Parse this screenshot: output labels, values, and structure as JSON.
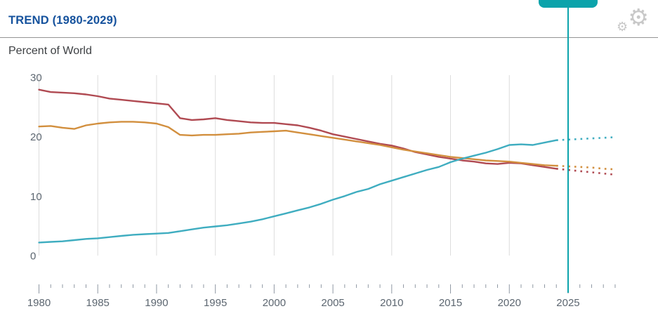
{
  "theme": {
    "title_blue": "#15529d",
    "subtitle_color": "#3c3f42",
    "divider_color": "#949494",
    "gear_gray": "#c8c8c8",
    "slider_handle_teal": "#0ba3ab"
  },
  "icons": {
    "settings_glyph": "⚙"
  },
  "chart_data": {
    "type": "line",
    "title": "TREND (1980-2029)",
    "ylabel": "Percent of World",
    "x_start": 1980,
    "x_end": 2029,
    "xticks": [
      1980,
      1985,
      1990,
      1995,
      2000,
      2005,
      2010,
      2015,
      2020,
      2025
    ],
    "yticks": [
      0,
      10,
      20,
      30
    ],
    "ylim": [
      0,
      30
    ],
    "grid": "vertical-gridlines-every-5-years",
    "legend": "none",
    "marker_year": 2025,
    "projection_start_year": 2024,
    "projection_style": "dotted",
    "colors": {
      "grid": "#dcdcdc",
      "tick": "#8f98a3",
      "axis_label": "#5c6670",
      "marker": "#0ba3ab"
    },
    "series": [
      {
        "id": "red",
        "color": "#b04a52",
        "values": [
          27.9,
          27.5,
          27.4,
          27.3,
          27.1,
          26.8,
          26.4,
          26.2,
          26.0,
          25.8,
          25.6,
          25.4,
          23.1,
          22.8,
          22.9,
          23.1,
          22.8,
          22.6,
          22.4,
          22.3,
          22.3,
          22.1,
          21.9,
          21.5,
          21.0,
          20.4,
          20.0,
          19.6,
          19.2,
          18.8,
          18.5,
          18.0,
          17.4,
          17.0,
          16.6,
          16.3,
          16.0,
          15.8,
          15.5,
          15.4,
          15.6,
          15.5,
          15.2,
          14.9,
          14.6,
          14.4,
          14.2,
          14.0,
          13.8,
          13.6
        ]
      },
      {
        "id": "orange",
        "color": "#d28f3e",
        "values": [
          21.7,
          21.8,
          21.5,
          21.3,
          21.9,
          22.2,
          22.4,
          22.5,
          22.5,
          22.4,
          22.2,
          21.6,
          20.3,
          20.2,
          20.3,
          20.3,
          20.4,
          20.5,
          20.7,
          20.8,
          20.9,
          21.0,
          20.7,
          20.4,
          20.1,
          19.8,
          19.5,
          19.2,
          18.9,
          18.6,
          18.2,
          17.8,
          17.5,
          17.2,
          16.9,
          16.6,
          16.4,
          16.2,
          16.0,
          15.9,
          15.8,
          15.6,
          15.4,
          15.2,
          15.1,
          15.0,
          14.9,
          14.8,
          14.6,
          14.5
        ]
      },
      {
        "id": "teal",
        "color": "#3fadc0",
        "values": [
          2.2,
          2.3,
          2.4,
          2.6,
          2.8,
          2.9,
          3.1,
          3.3,
          3.5,
          3.6,
          3.7,
          3.8,
          4.1,
          4.4,
          4.7,
          4.9,
          5.1,
          5.4,
          5.7,
          6.1,
          6.6,
          7.1,
          7.6,
          8.1,
          8.7,
          9.4,
          10.0,
          10.7,
          11.2,
          12.0,
          12.6,
          13.2,
          13.8,
          14.4,
          14.9,
          15.7,
          16.3,
          16.8,
          17.3,
          17.9,
          18.6,
          18.7,
          18.6,
          19.0,
          19.4,
          19.5,
          19.6,
          19.7,
          19.8,
          19.9
        ]
      }
    ]
  }
}
